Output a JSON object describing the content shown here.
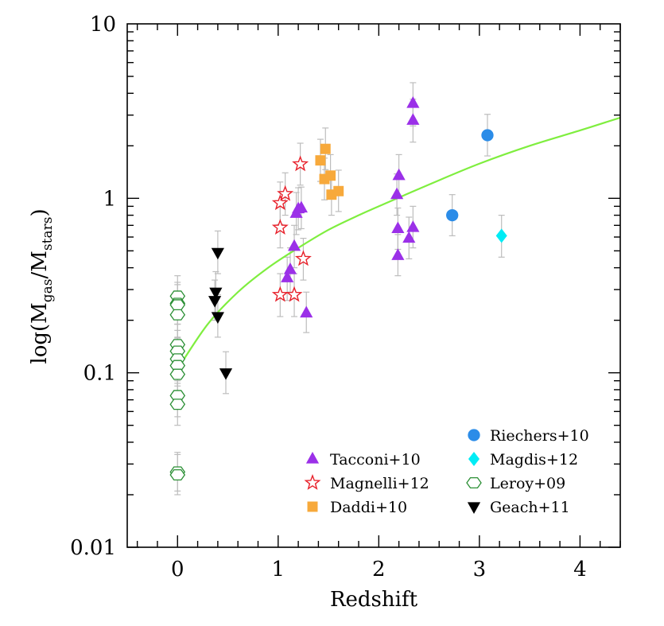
{
  "chart_data": {
    "type": "scatter",
    "title": "",
    "xlabel": "Redshift",
    "ylabel_parts": {
      "prefix": "log(M",
      "sub1": "gas",
      "slash": "/M",
      "sub2": "stars",
      "suffix": ")"
    },
    "xlim": [
      -0.5,
      4.4
    ],
    "ylim": [
      0.01,
      10
    ],
    "yscale": "log",
    "x_ticks": [
      {
        "value": 0,
        "label": "0"
      },
      {
        "value": 1,
        "label": "1"
      },
      {
        "value": 2,
        "label": "2"
      },
      {
        "value": 3,
        "label": "3"
      },
      {
        "value": 4,
        "label": "4"
      }
    ],
    "y_ticks": [
      {
        "value": 0.01,
        "label": "0.01"
      },
      {
        "value": 0.1,
        "label": "0.1"
      },
      {
        "value": 1,
        "label": "1"
      },
      {
        "value": 10,
        "label": "10"
      }
    ],
    "fit_curve": {
      "color": "#7fee3f",
      "points": [
        [
          0.0,
          0.105
        ],
        [
          0.3,
          0.19
        ],
        [
          0.6,
          0.29
        ],
        [
          0.9,
          0.4
        ],
        [
          1.2,
          0.52
        ],
        [
          1.5,
          0.66
        ],
        [
          1.8,
          0.8
        ],
        [
          2.0,
          0.9
        ],
        [
          2.5,
          1.2
        ],
        [
          3.0,
          1.58
        ],
        [
          3.5,
          2.0
        ],
        [
          4.0,
          2.45
        ],
        [
          4.4,
          2.9
        ]
      ]
    },
    "series": [
      {
        "name": "Tacconi+10",
        "marker": "triangle-up",
        "color": "#9b30e8",
        "filled": true,
        "points": [
          {
            "x": 1.09,
            "y": 0.35,
            "lo": 0.26,
            "hi": 0.46
          },
          {
            "x": 1.12,
            "y": 0.39,
            "lo": 0.29,
            "hi": 0.52
          },
          {
            "x": 1.16,
            "y": 0.53,
            "lo": 0.4,
            "hi": 0.7
          },
          {
            "x": 1.18,
            "y": 0.82,
            "lo": 0.62,
            "hi": 1.08
          },
          {
            "x": 1.2,
            "y": 0.87,
            "lo": 0.66,
            "hi": 1.15
          },
          {
            "x": 1.23,
            "y": 0.88,
            "lo": 0.67,
            "hi": 1.16
          },
          {
            "x": 1.28,
            "y": 0.22,
            "lo": 0.17,
            "hi": 0.29
          },
          {
            "x": 2.18,
            "y": 1.05,
            "lo": 0.8,
            "hi": 1.38
          },
          {
            "x": 2.2,
            "y": 1.35,
            "lo": 1.02,
            "hi": 1.78
          },
          {
            "x": 2.19,
            "y": 0.67,
            "lo": 0.51,
            "hi": 0.88
          },
          {
            "x": 2.19,
            "y": 0.47,
            "lo": 0.36,
            "hi": 0.62
          },
          {
            "x": 2.3,
            "y": 0.59,
            "lo": 0.45,
            "hi": 0.78
          },
          {
            "x": 2.34,
            "y": 0.68,
            "lo": 0.52,
            "hi": 0.9
          },
          {
            "x": 2.34,
            "y": 2.8,
            "lo": 2.1,
            "hi": 3.7
          },
          {
            "x": 2.34,
            "y": 3.5,
            "lo": 2.6,
            "hi": 4.6
          }
        ]
      },
      {
        "name": "Magnelli+12",
        "marker": "star",
        "color": "#e8202a",
        "filled": false,
        "points": [
          {
            "x": 1.02,
            "y": 0.68,
            "lo": 0.52,
            "hi": 0.9
          },
          {
            "x": 1.02,
            "y": 0.94,
            "lo": 0.71,
            "hi": 1.24
          },
          {
            "x": 1.07,
            "y": 1.06,
            "lo": 0.8,
            "hi": 1.4
          },
          {
            "x": 1.02,
            "y": 0.28,
            "lo": 0.21,
            "hi": 0.37
          },
          {
            "x": 1.16,
            "y": 0.28,
            "lo": 0.21,
            "hi": 0.37
          },
          {
            "x": 1.22,
            "y": 1.57,
            "lo": 1.19,
            "hi": 2.07
          },
          {
            "x": 1.25,
            "y": 0.45,
            "lo": 0.34,
            "hi": 0.59
          }
        ]
      },
      {
        "name": "Daddi+10",
        "marker": "square",
        "color": "#f7a93b",
        "filled": true,
        "points": [
          {
            "x": 1.42,
            "y": 1.65,
            "lo": 1.25,
            "hi": 2.18
          },
          {
            "x": 1.47,
            "y": 1.92,
            "lo": 1.46,
            "hi": 2.53
          },
          {
            "x": 1.46,
            "y": 1.29,
            "lo": 0.98,
            "hi": 1.7
          },
          {
            "x": 1.52,
            "y": 1.35,
            "lo": 1.03,
            "hi": 1.78
          },
          {
            "x": 1.53,
            "y": 1.05,
            "lo": 0.8,
            "hi": 1.38
          },
          {
            "x": 1.6,
            "y": 1.1,
            "lo": 0.84,
            "hi": 1.45
          }
        ]
      },
      {
        "name": "Riechers+10",
        "marker": "circle",
        "color": "#2b8ce8",
        "filled": true,
        "points": [
          {
            "x": 2.73,
            "y": 0.8,
            "lo": 0.61,
            "hi": 1.05
          },
          {
            "x": 3.08,
            "y": 2.3,
            "lo": 1.75,
            "hi": 3.03
          }
        ]
      },
      {
        "name": "Magdis+12",
        "marker": "diamond",
        "color": "#00ecf5",
        "filled": true,
        "points": [
          {
            "x": 3.22,
            "y": 0.61,
            "lo": 0.46,
            "hi": 0.8
          }
        ]
      },
      {
        "name": "Leroy+09",
        "marker": "hexagon",
        "color": "#2a8f34",
        "filled": false,
        "points": [
          {
            "x": 0.0,
            "y": 0.275,
            "lo": 0.21,
            "hi": 0.36
          },
          {
            "x": 0.0,
            "y": 0.25,
            "lo": 0.19,
            "hi": 0.33
          },
          {
            "x": 0.0,
            "y": 0.245,
            "lo": 0.19,
            "hi": 0.32
          },
          {
            "x": 0.0,
            "y": 0.215,
            "lo": 0.16,
            "hi": 0.28
          },
          {
            "x": 0.0,
            "y": 0.145,
            "lo": 0.11,
            "hi": 0.19
          },
          {
            "x": 0.0,
            "y": 0.133,
            "lo": 0.1,
            "hi": 0.175
          },
          {
            "x": 0.0,
            "y": 0.12,
            "lo": 0.09,
            "hi": 0.158
          },
          {
            "x": 0.0,
            "y": 0.11,
            "lo": 0.084,
            "hi": 0.145
          },
          {
            "x": 0.0,
            "y": 0.098,
            "lo": 0.075,
            "hi": 0.129
          },
          {
            "x": 0.0,
            "y": 0.074,
            "lo": 0.056,
            "hi": 0.097
          },
          {
            "x": 0.0,
            "y": 0.066,
            "lo": 0.05,
            "hi": 0.087
          },
          {
            "x": 0.0,
            "y": 0.027,
            "lo": 0.021,
            "hi": 0.035
          },
          {
            "x": 0.0,
            "y": 0.026,
            "lo": 0.02,
            "hi": 0.034
          }
        ]
      },
      {
        "name": "Geach+11",
        "marker": "triangle-down",
        "color": "#000000",
        "filled": true,
        "points": [
          {
            "x": 0.4,
            "y": 0.49,
            "lo": 0.37,
            "hi": 0.65
          },
          {
            "x": 0.38,
            "y": 0.29,
            "lo": 0.22,
            "hi": 0.38
          },
          {
            "x": 0.37,
            "y": 0.26,
            "lo": 0.2,
            "hi": 0.34
          },
          {
            "x": 0.4,
            "y": 0.21,
            "lo": 0.16,
            "hi": 0.28
          },
          {
            "x": 0.48,
            "y": 0.1,
            "lo": 0.076,
            "hi": 0.132
          }
        ]
      }
    ],
    "legend": {
      "placement": "bottom-right",
      "left_column": [
        "Tacconi+10",
        "Magnelli+12",
        "Daddi+10"
      ],
      "right_column": [
        "Riechers+10",
        "Magdis+12",
        "Leroy+09",
        "Geach+11"
      ]
    }
  }
}
